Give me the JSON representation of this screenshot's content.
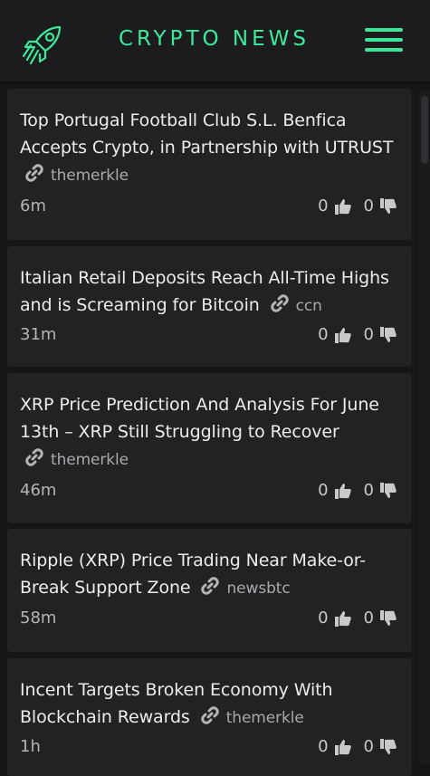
{
  "header": {
    "title": "CRYPTO NEWS",
    "logo_icon": "rocket-icon",
    "menu_icon": "hamburger-menu-icon",
    "accent_color": "#3ee89a"
  },
  "articles": [
    {
      "title": "Top Portugal Football Club S.L. Benfica Accepts Crypto, in Partnership with UTRUST",
      "source": "themerkle",
      "time": "6m",
      "upvotes": "0",
      "downvotes": "0"
    },
    {
      "title": "Italian Retail Deposits Reach All-Time Highs and is Screaming for Bitcoin",
      "source": "ccn",
      "time": "31m",
      "upvotes": "0",
      "downvotes": "0"
    },
    {
      "title": "XRP Price Prediction And Analysis For June 13th – XRP Still Struggling to Recover",
      "source": "themerkle",
      "time": "46m",
      "upvotes": "0",
      "downvotes": "0"
    },
    {
      "title": "Ripple (XRP) Price Trading Near Make-or-Break Support Zone",
      "source": "newsbtc",
      "time": "58m",
      "upvotes": "0",
      "downvotes": "0"
    },
    {
      "title": "Incent Targets Broken Economy With Blockchain Rewards",
      "source": "themerkle",
      "time": "1h",
      "upvotes": "0",
      "downvotes": "0"
    }
  ]
}
